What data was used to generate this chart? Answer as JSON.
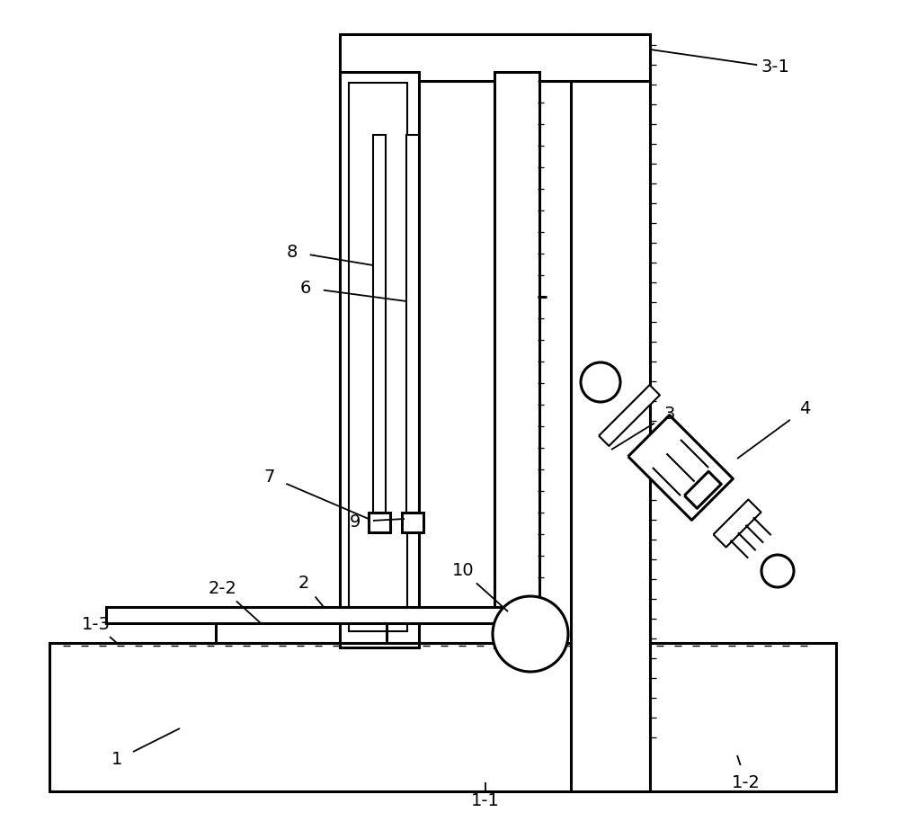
{
  "bg": "#ffffff",
  "lc": "#000000",
  "lw": 2.2,
  "tlw": 1.5,
  "fs": 14,
  "figw": 10.0,
  "figh": 9.33
}
